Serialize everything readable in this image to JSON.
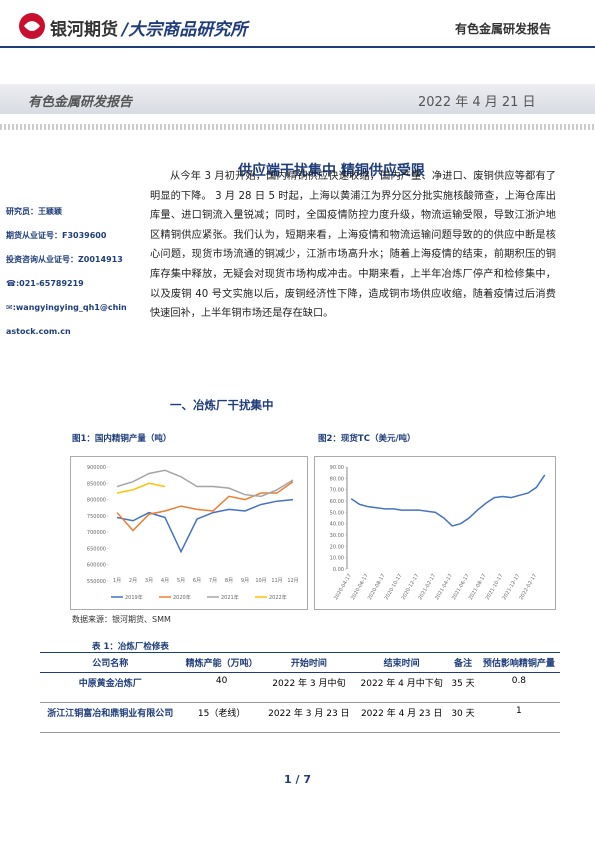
{
  "header": {
    "brand": "银河期货",
    "institute": "/大宗商品研究所",
    "report_type": "有色金属研发报告"
  },
  "banner": {
    "left": "有色金属研发报告",
    "date": "2022 年 4 月 21 日"
  },
  "title": "供应端干扰集中 精铜供应受限",
  "sidebar": [
    "研究员：王颖颖",
    "期货从业证号：F3039600",
    "投资咨询从业证号：Z0014913",
    "☎:021-65789219",
    "✉:wangyingying_qh1@chinastock.com.cn"
  ],
  "body": "从今年 3 月初开始，国内精铜供应快速收缩，国内产量、净进口、废铜供应等都有了明显的下降。 3 月 28 日 5 时起，上海以黄浦江为界分区分批实施核酸筛查，上海仓库出库量、进口铜流入量锐减；同时，全国疫情防控力度升级，物流运输受限，导致江浙沪地区精铜供应紧张。我们认为，短期来看，上海疫情和物流运输问题导致的的供应中断是核心问题，现货市场流通的铜减少，江浙市场高升水；随着上海疫情的结束，前期积压的铜库存集中释放，无疑会对现货市场构成冲击。中期来看，上半年冶炼厂停产和检修集中，以及废铜 40 号文实施以后，废铜经济性下降，造成铜市场供应收缩，随着疫情过后消费快速回补，上半年铜市场还是存在缺口。",
  "section": "一、冶炼厂干扰集中",
  "chart_data": [
    {
      "type": "line",
      "title": "图1：国内精铜产量（吨）",
      "categories": [
        "1月",
        "2月",
        "3月",
        "4月",
        "5月",
        "6月",
        "7月",
        "8月",
        "9月",
        "10月",
        "11月",
        "12月"
      ],
      "series": [
        {
          "name": "2019年",
          "color": "#4472c4",
          "values": [
            745000,
            735000,
            760000,
            745000,
            640000,
            740000,
            760000,
            770000,
            765000,
            785000,
            795000,
            800000
          ]
        },
        {
          "name": "2020年",
          "color": "#ed7d31",
          "values": [
            760000,
            705000,
            755000,
            765000,
            780000,
            770000,
            765000,
            810000,
            800000,
            820000,
            820000,
            855000
          ]
        },
        {
          "name": "2021年",
          "color": "#a5a5a5",
          "values": [
            840000,
            855000,
            880000,
            890000,
            870000,
            840000,
            840000,
            835000,
            815000,
            810000,
            830000,
            860000
          ]
        },
        {
          "name": "2022年",
          "color": "#ffc000",
          "values": [
            820000,
            830000,
            850000,
            840000,
            null,
            null,
            null,
            null,
            null,
            null,
            null,
            null
          ]
        }
      ],
      "ylim": [
        550000,
        900000
      ],
      "yticks": [
        550000,
        600000,
        650000,
        700000,
        750000,
        800000,
        850000,
        900000
      ],
      "grid": false
    },
    {
      "type": "line",
      "title": "图2：现货TC（美元/吨）",
      "categories": [
        "2020-04-17",
        null,
        "2020-06-17",
        null,
        "2020-08-17",
        null,
        "2020-10-17",
        null,
        "2020-12-17",
        null,
        "2021-02-17",
        null,
        "2021-04-17",
        null,
        "2021-06-17",
        null,
        "2021-08-17",
        null,
        "2021-10-17",
        null,
        "2021-12-17",
        null,
        "2022-02-17",
        null
      ],
      "color": "#4472c4",
      "values": [
        62,
        57,
        55,
        54,
        53,
        53,
        52,
        52,
        52,
        51,
        50,
        45,
        38,
        40,
        45,
        52,
        58,
        63,
        64,
        63,
        65,
        67,
        72,
        83
      ],
      "ylim": [
        0,
        90
      ],
      "yticks": [
        {
          "value": 0,
          "label": "0.00"
        },
        {
          "value": 10,
          "label": "10.00"
        },
        {
          "value": 20,
          "label": "20.00"
        },
        {
          "value": 30,
          "label": "30.00"
        },
        {
          "value": 40,
          "label": "40.00"
        },
        {
          "value": 50,
          "label": "50.00"
        },
        {
          "value": 60,
          "label": "60.00"
        },
        {
          "value": 70,
          "label": "70.00"
        },
        {
          "value": 80,
          "label": "80.00"
        },
        {
          "value": 90,
          "label": "90.00"
        }
      ],
      "grid": false
    }
  ],
  "source": "数据来源：银河期货、SMM",
  "table": {
    "caption": "表 1：冶炼厂检修表",
    "header": [
      "公司名称",
      "精炼产能（万吨）",
      "开始时间",
      "结束时间",
      "备注",
      "预估影响精铜产量"
    ],
    "rows": [
      [
        "中原黄金冶炼厂",
        40,
        "2022 年 3 月中旬",
        "2022 年 4 月中下旬",
        "35 天",
        0.8
      ],
      [
        "浙江江铜富冶和鼎铜业有限公司",
        "15（老线）",
        "2022 年 3 月 23 日",
        "2022 年 4 月 23 日",
        "30 天",
        1
      ]
    ]
  },
  "footer": {
    "page": "1 / 7"
  }
}
